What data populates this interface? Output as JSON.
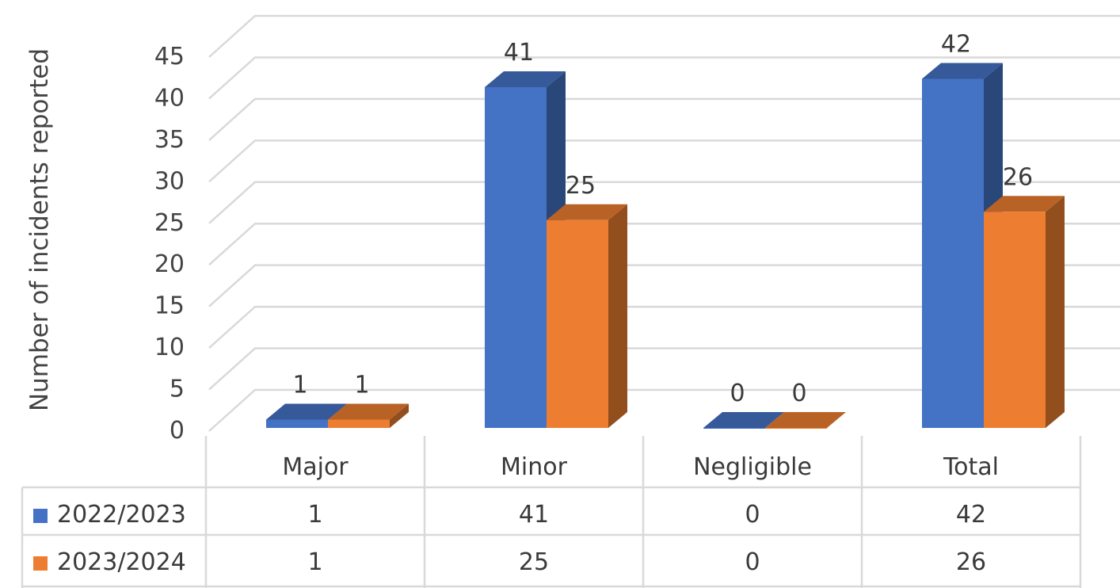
{
  "chart_data": {
    "type": "bar",
    "style": "3d-clustered-column-with-data-table",
    "categories": [
      "Major",
      "Minor",
      "Negligible",
      "Total"
    ],
    "series": [
      {
        "name": "2022/2023",
        "color": "#4472c4",
        "values": [
          1,
          41,
          0,
          42
        ]
      },
      {
        "name": "2023/2024",
        "color": "#ed7d31",
        "values": [
          1,
          25,
          0,
          26
        ]
      }
    ],
    "xlabel": "",
    "ylabel": "Number of incidents reported",
    "ylim": [
      0,
      45
    ],
    "yticks": [
      0,
      5,
      10,
      15,
      20,
      25,
      30,
      35,
      40,
      45
    ],
    "grid": true,
    "data_labels": true,
    "legend": "data-table"
  }
}
